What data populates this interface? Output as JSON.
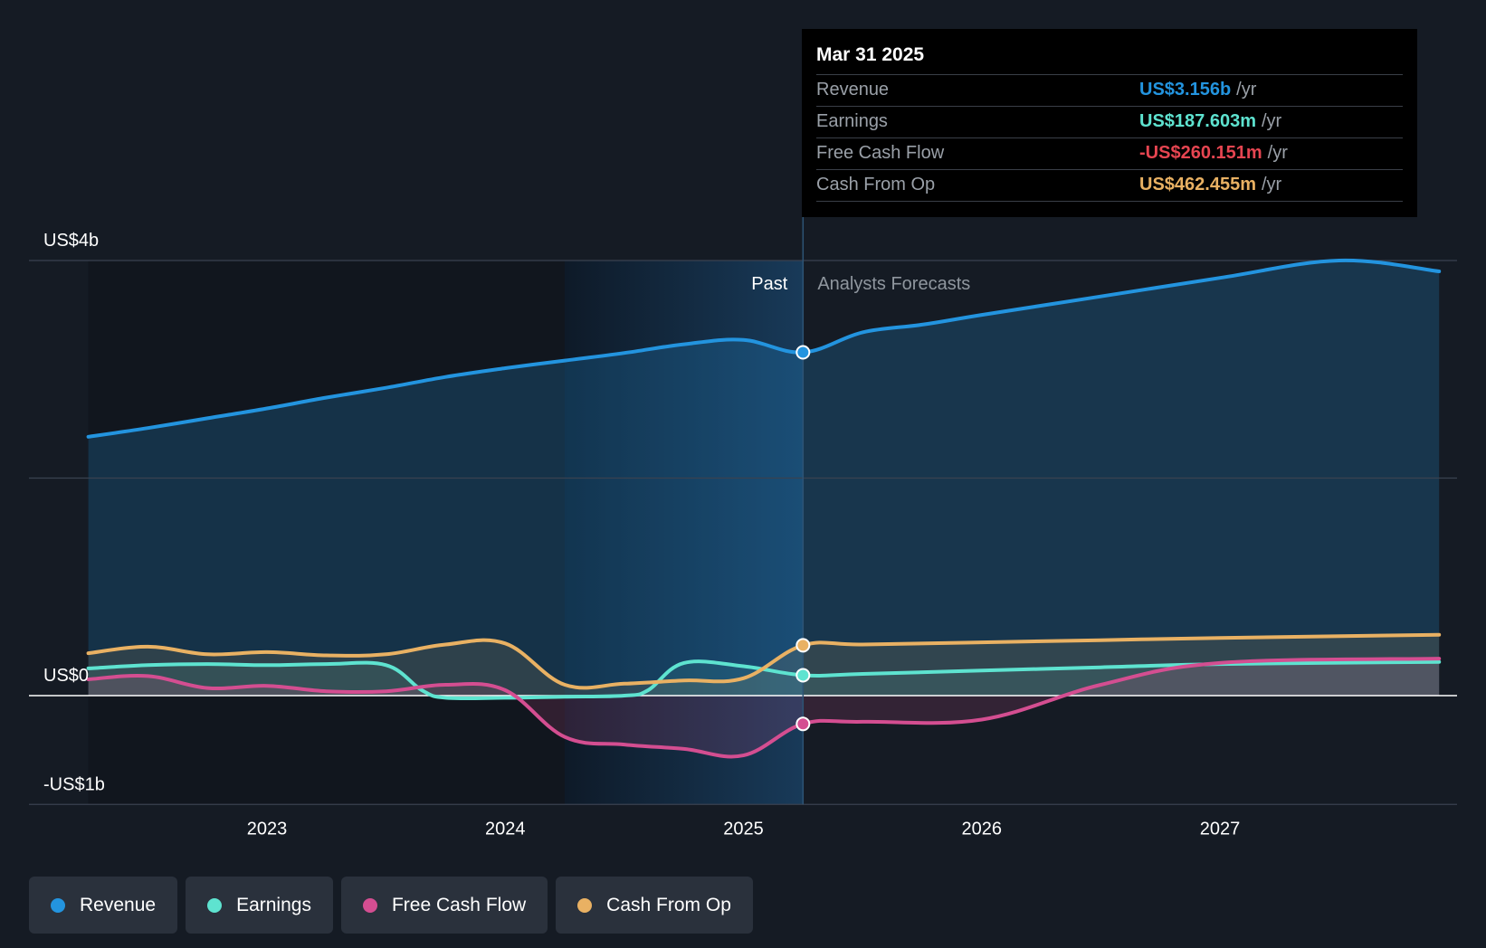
{
  "tooltip": {
    "date": "Mar 31 2025",
    "rows": [
      {
        "name": "Revenue",
        "value": "US$3.156b",
        "unit": "/yr",
        "color": "#2394df"
      },
      {
        "name": "Earnings",
        "value": "US$187.603m",
        "unit": "/yr",
        "color": "#5ee3d0"
      },
      {
        "name": "Free Cash Flow",
        "value": "-US$260.151m",
        "unit": "/yr",
        "color": "#e64551"
      },
      {
        "name": "Cash From Op",
        "value": "US$462.455m",
        "unit": "/yr",
        "color": "#e9b163"
      }
    ]
  },
  "legend": [
    {
      "label": "Revenue",
      "color": "#2394df"
    },
    {
      "label": "Earnings",
      "color": "#5ee3d0"
    },
    {
      "label": "Free Cash Flow",
      "color": "#d44e91"
    },
    {
      "label": "Cash From Op",
      "color": "#e9b163"
    }
  ],
  "chart_data": {
    "type": "line",
    "title": "",
    "xlabel": "",
    "ylabel": "",
    "ylim": [
      -1,
      4
    ],
    "xlim": [
      2022.25,
      2027.92
    ],
    "y_tick_labels": [
      {
        "value": 4,
        "label": "US$4b"
      },
      {
        "value": 0,
        "label": "US$0"
      },
      {
        "value": -1,
        "label": "-US$1b"
      }
    ],
    "x_ticks": [
      2023,
      2024,
      2025,
      2026,
      2027
    ],
    "x_tick_labels": [
      "2023",
      "2024",
      "2025",
      "2026",
      "2027"
    ],
    "past_label": "Past",
    "forecast_label": "Analysts Forecasts",
    "past_highlight_start": 2024.25,
    "divider_x": 2025.25,
    "grid": true,
    "legend_position": "bottom-left",
    "series": [
      {
        "name": "Revenue",
        "color": "#2394df",
        "x": [
          2022.25,
          2022.5,
          2022.75,
          2023.0,
          2023.25,
          2023.5,
          2023.75,
          2024.0,
          2024.25,
          2024.5,
          2024.75,
          2025.0,
          2025.25,
          2025.5,
          2025.75,
          2026.0,
          2026.5,
          2027.0,
          2027.5,
          2027.92
        ],
        "y": [
          2.38,
          2.46,
          2.55,
          2.64,
          2.74,
          2.83,
          2.93,
          3.01,
          3.08,
          3.15,
          3.23,
          3.27,
          3.156,
          3.34,
          3.41,
          3.5,
          3.67,
          3.84,
          4.0,
          3.9
        ]
      },
      {
        "name": "Earnings",
        "color": "#5ee3d0",
        "x": [
          2022.25,
          2022.5,
          2022.75,
          2023.0,
          2023.25,
          2023.5,
          2023.65,
          2023.75,
          2024.0,
          2024.25,
          2024.5,
          2024.6,
          2024.75,
          2025.0,
          2025.25,
          2025.5,
          2026.0,
          2026.5,
          2027.0,
          2027.92
        ],
        "y": [
          0.25,
          0.28,
          0.29,
          0.28,
          0.29,
          0.28,
          0.05,
          -0.02,
          -0.02,
          -0.01,
          0.0,
          0.05,
          0.3,
          0.27,
          0.187603,
          0.2,
          0.23,
          0.26,
          0.29,
          0.31
        ]
      },
      {
        "name": "Free Cash Flow",
        "color": "#d44e91",
        "x": [
          2022.25,
          2022.5,
          2022.75,
          2023.0,
          2023.25,
          2023.5,
          2023.75,
          2024.0,
          2024.25,
          2024.5,
          2024.75,
          2025.0,
          2025.25,
          2025.5,
          2026.0,
          2026.5,
          2027.0,
          2027.92
        ],
        "y": [
          0.15,
          0.18,
          0.07,
          0.09,
          0.04,
          0.04,
          0.1,
          0.05,
          -0.38,
          -0.45,
          -0.49,
          -0.55,
          -0.260151,
          -0.24,
          -0.22,
          0.1,
          0.3,
          0.34
        ]
      },
      {
        "name": "Cash From Op",
        "color": "#e9b163",
        "x": [
          2022.25,
          2022.5,
          2022.75,
          2023.0,
          2023.25,
          2023.5,
          2023.75,
          2024.0,
          2024.25,
          2024.5,
          2024.75,
          2025.0,
          2025.25,
          2025.5,
          2026.0,
          2026.5,
          2027.0,
          2027.92
        ],
        "y": [
          0.39,
          0.45,
          0.38,
          0.4,
          0.37,
          0.38,
          0.47,
          0.48,
          0.1,
          0.11,
          0.14,
          0.16,
          0.462455,
          0.47,
          0.49,
          0.51,
          0.53,
          0.56
        ]
      }
    ]
  }
}
